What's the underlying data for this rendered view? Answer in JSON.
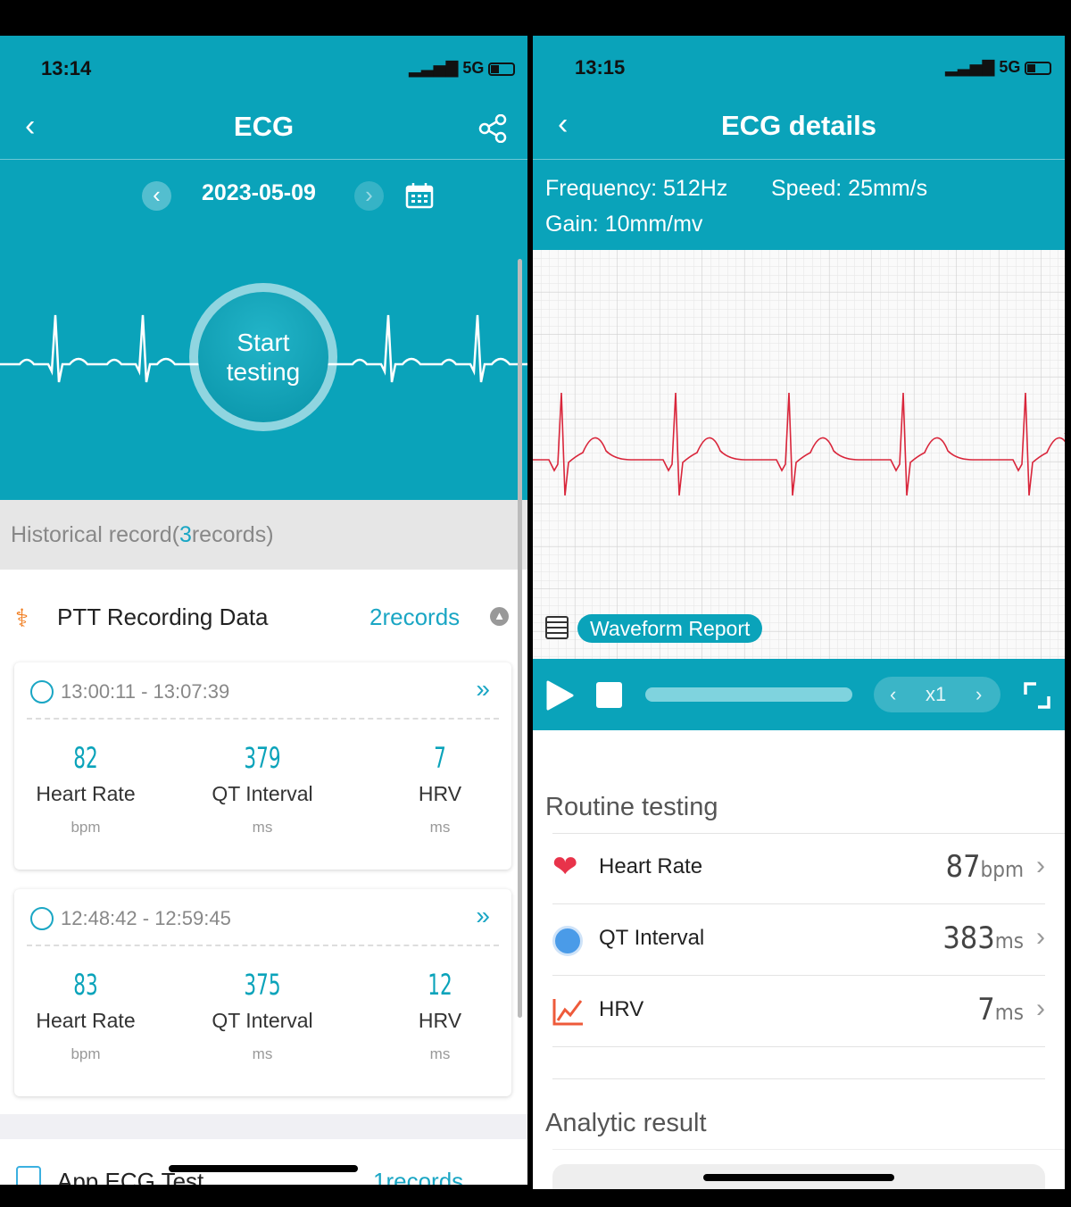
{
  "left": {
    "status": {
      "time": "13:14",
      "network": "5G"
    },
    "title": "ECG",
    "date": "2023-05-09",
    "start_button": "Start testing",
    "history": {
      "prefix": "Historical record(",
      "count": "3",
      "suffix": "records)"
    },
    "section": {
      "title": "PTT Recording Data",
      "count": "2records"
    },
    "records": [
      {
        "time": "13:00:11 - 13:07:39",
        "metrics": [
          {
            "value": "82",
            "label": "Heart Rate",
            "unit": "bpm"
          },
          {
            "value": "379",
            "label": "QT Interval",
            "unit": "ms"
          },
          {
            "value": "7",
            "label": "HRV",
            "unit": "ms"
          }
        ]
      },
      {
        "time": "12:48:42 - 12:59:45",
        "metrics": [
          {
            "value": "83",
            "label": "Heart Rate",
            "unit": "bpm"
          },
          {
            "value": "375",
            "label": "QT Interval",
            "unit": "ms"
          },
          {
            "value": "12",
            "label": "HRV",
            "unit": "ms"
          }
        ]
      }
    ],
    "next_section": {
      "title": "App ECG Test",
      "count": "1records"
    }
  },
  "right": {
    "status": {
      "time": "13:15",
      "network": "5G"
    },
    "title": "ECG details",
    "frequency": "Frequency: 512Hz",
    "speed": "Speed: 25mm/s",
    "gain": "Gain: 10mm/mv",
    "report_button": "Waveform Report",
    "playback_speed": "x1",
    "routine_title": "Routine testing",
    "rows": [
      {
        "label": "Heart Rate",
        "value": "87",
        "unit": "bpm"
      },
      {
        "label": "QT Interval",
        "value": "383",
        "unit": "ms"
      },
      {
        "label": "HRV",
        "value": "7",
        "unit": "ms"
      }
    ],
    "analytic_title": "Analytic result"
  },
  "colors": {
    "teal": "#0aa3ba",
    "ecg_trace": "#d9263b",
    "link": "#1aa6c4"
  }
}
